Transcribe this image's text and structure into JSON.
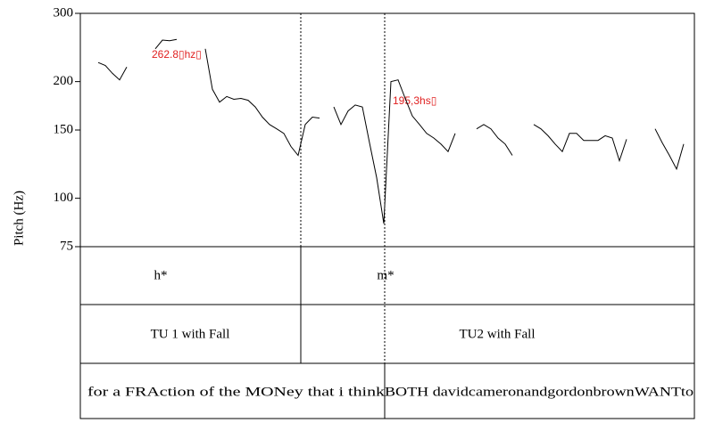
{
  "chart_data": {
    "type": "line",
    "ylabel": "Pitch (Hz)",
    "ylim": [
      75,
      300
    ],
    "yticks": [
      75,
      100,
      150,
      200,
      300
    ],
    "log_scale": true,
    "series": [
      {
        "color": "#000000",
        "values": [
          224,
          220,
          210,
          202,
          218,
          null,
          null,
          null,
          243,
          256,
          255,
          257,
          null,
          null,
          null,
          243,
          191,
          177,
          183,
          180,
          181,
          179,
          172,
          162,
          155,
          151,
          147,
          136,
          129,
          155,
          162,
          161,
          null,
          172,
          155,
          168,
          174,
          172,
          139,
          113,
          86,
          200,
          202,
          181,
          163,
          155,
          147,
          143,
          138,
          132,
          147,
          null,
          null,
          151,
          155,
          151,
          143,
          138,
          129,
          null,
          null,
          155,
          151,
          145,
          138,
          132,
          147,
          147,
          141,
          141,
          141,
          145,
          143,
          125,
          142,
          null,
          null,
          null,
          151,
          139,
          129,
          119,
          138
        ]
      }
    ],
    "annotations": [
      "262.8▯hz▯",
      "195,3hs▯"
    ],
    "tiers": [
      {
        "labels": [
          "h*",
          "m*"
        ]
      },
      {
        "labels": [
          "TU 1 with Fall",
          "TU2 with Fall"
        ]
      },
      {
        "labels": [
          "for a FRAction of the MONey that i think",
          "BOTH davidcameronandgordonbrownWANTto"
        ]
      }
    ]
  }
}
